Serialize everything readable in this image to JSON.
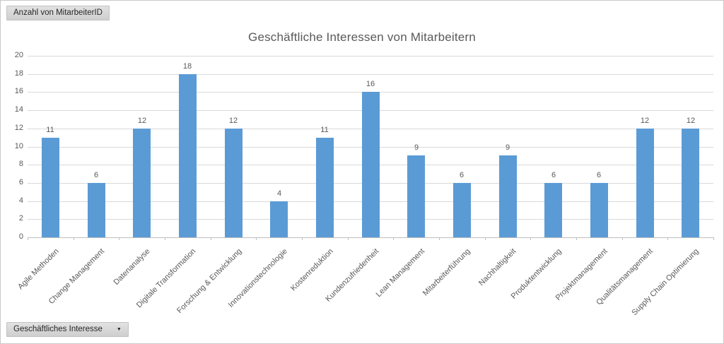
{
  "pivot_buttons": {
    "value_field": "Anzahl von MitarbeiterID",
    "axis_field": "Geschäftliches Interesse",
    "dropdown_icon": "▼"
  },
  "chart_data": {
    "type": "bar",
    "title": "Geschäftliche Interessen von Mitarbeitern",
    "categories": [
      "Agile Methoden",
      "Change Management",
      "Datenanalyse",
      "Digitale Transformation",
      "Forschung & Entwicklung",
      "Innovationstechnologie",
      "Kostenreduktion",
      "Kundenzufriedenheit",
      "Lean Management",
      "Mitarbeiterführung",
      "Nachhaltigkeit",
      "Produktentwicklung",
      "Projektmanagement",
      "Qualitätsmanagement",
      "Supply Chain Optimierung"
    ],
    "values": [
      11,
      6,
      12,
      18,
      12,
      4,
      11,
      16,
      9,
      6,
      9,
      6,
      6,
      12,
      12
    ],
    "ylim": [
      0,
      20
    ],
    "ytick_step": 2,
    "grid": true,
    "legend": "none",
    "data_labels": true
  },
  "colors": {
    "bar": "#5B9BD5",
    "gridline": "#D9D9D9",
    "axis_line": "#BFBFBF",
    "chart_text": "#595959",
    "button_text": "#262626"
  }
}
